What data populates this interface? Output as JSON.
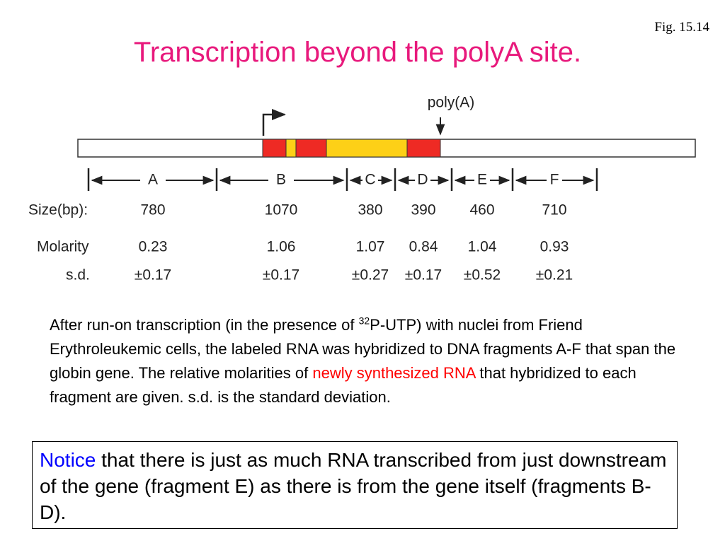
{
  "fig_label": "Fig. 15.14",
  "title": "Transcription beyond the polyA site.",
  "diagram": {
    "polya_label": "poly(A)",
    "fragments": [
      "A",
      "B",
      "C",
      "D",
      "E",
      "F"
    ]
  },
  "table": {
    "rows": [
      {
        "label": "Size(bp):",
        "values": [
          780,
          1070,
          380,
          390,
          460,
          710
        ]
      },
      {
        "label": "Molarity",
        "values": [
          0.23,
          1.06,
          1.07,
          0.84,
          1.04,
          0.93
        ]
      },
      {
        "label": "s.d.",
        "values": [
          "±0.17",
          "±0.17",
          "±0.27",
          "±0.17",
          "±0.52",
          "±0.21"
        ]
      }
    ]
  },
  "paragraph": {
    "part1": "After run-on transcription (in the presence of ",
    "superscript": "32",
    "part2": "P-UTP) with nuclei from Friend Erythroleukemic cells, the labeled RNA was hybridized to DNA fragments A-F that span the globin gene. The relative molarities of ",
    "highlight": "newly synthesized RNA",
    "part3": " that hybridized to each fragment are given. s.d. is the standard deviation."
  },
  "notice": {
    "highlight": "Notice",
    "text": " that there is just as much RNA transcribed from just downstream of the gene (fragment E) as there is from the gene itself (fragments B-D)."
  }
}
